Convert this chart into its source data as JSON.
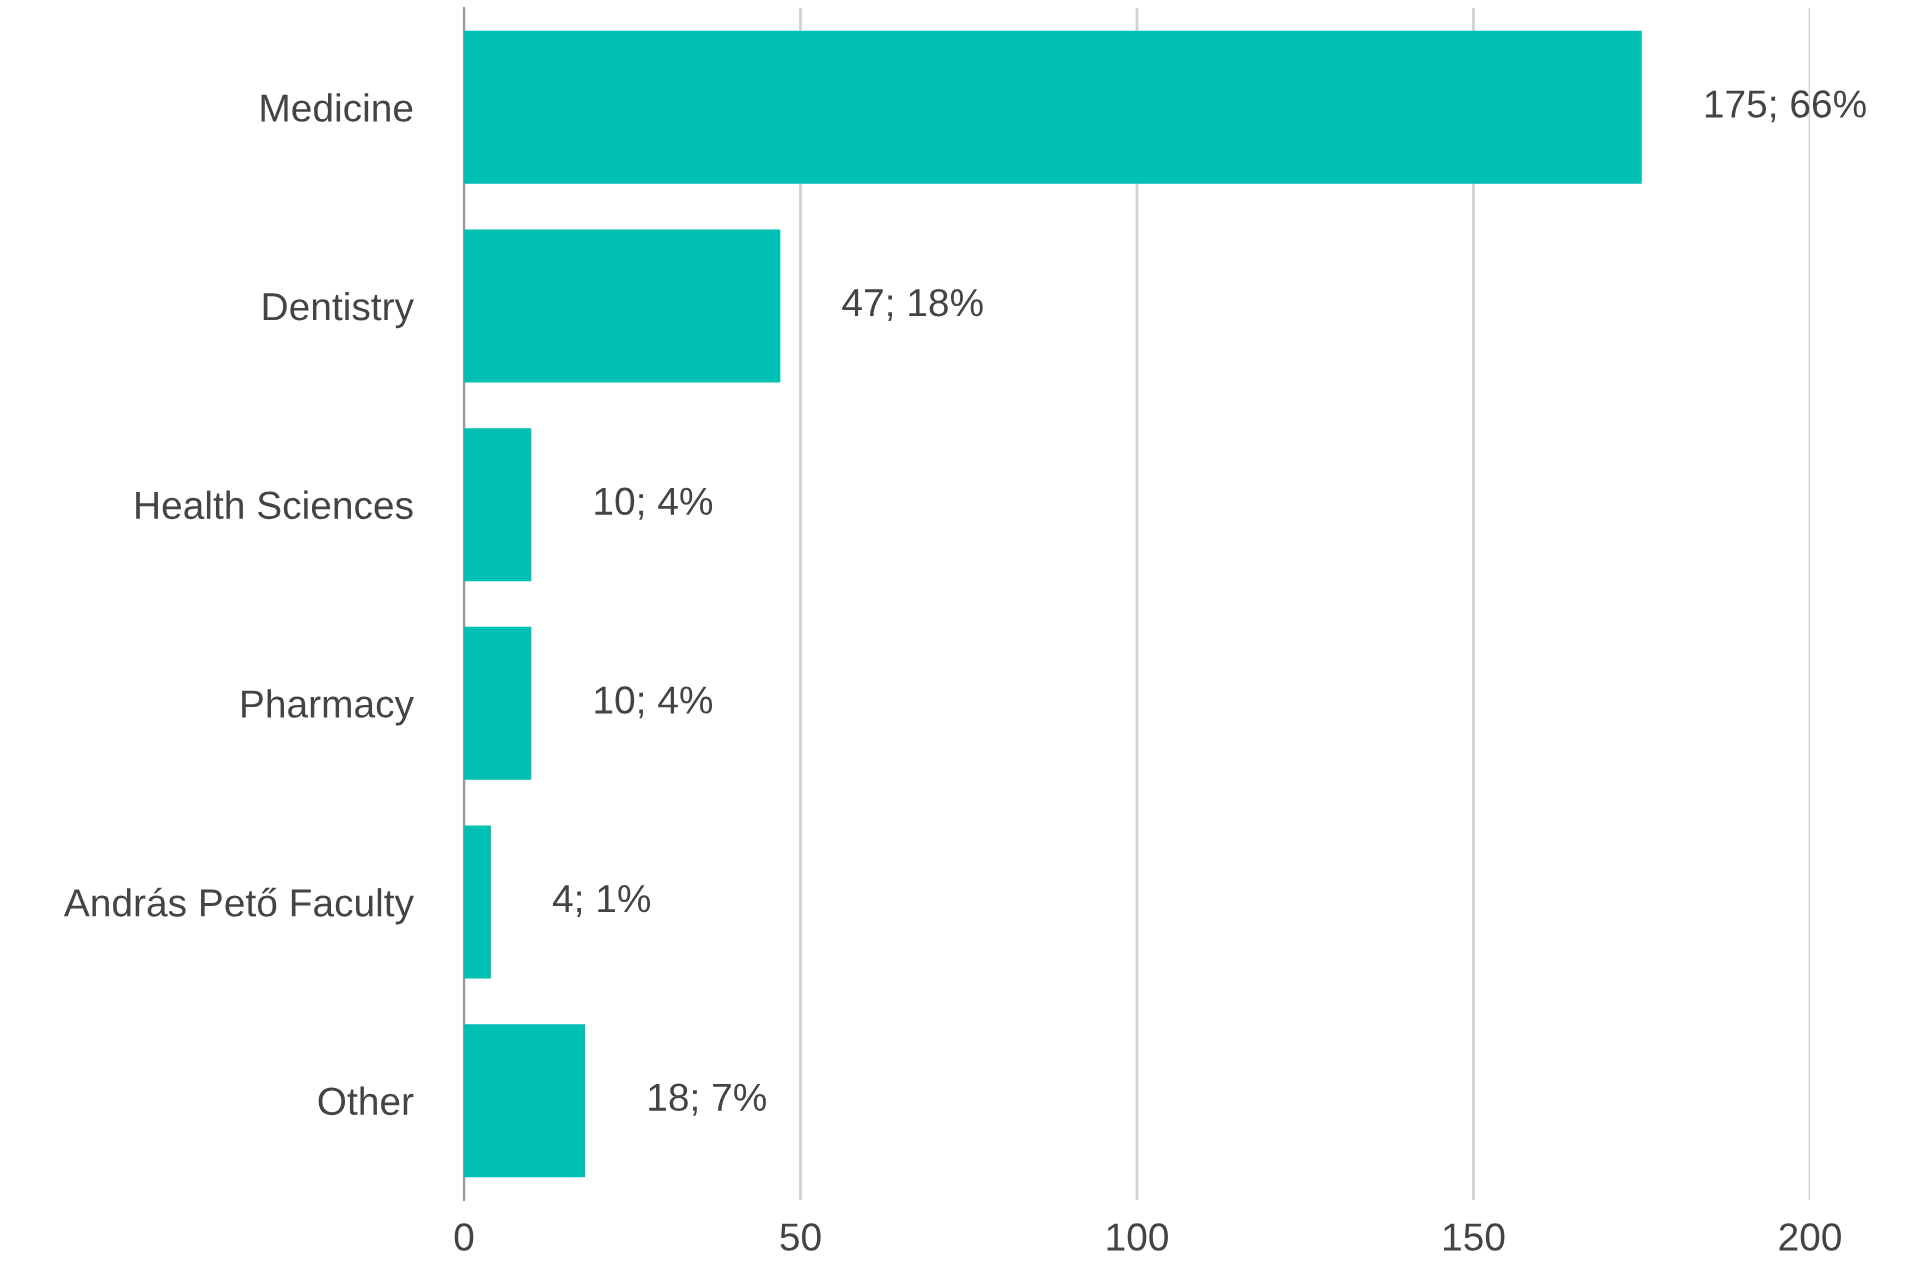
{
  "chart_data": {
    "type": "bar",
    "orientation": "horizontal",
    "categories": [
      "Medicine",
      "Dentistry",
      "Health Sciences",
      "Pharmacy",
      "András Pető Faculty",
      "Other"
    ],
    "values": [
      175,
      47,
      10,
      10,
      4,
      18
    ],
    "value_labels": [
      "175; 66%",
      "47; 18%",
      "10; 4%",
      "10; 4%",
      "4; 1%",
      "18; 7%"
    ],
    "color": "#00bfb3",
    "xlim": [
      0,
      200
    ],
    "xticks": [
      0,
      50,
      100,
      150,
      200
    ],
    "grid": "x"
  }
}
